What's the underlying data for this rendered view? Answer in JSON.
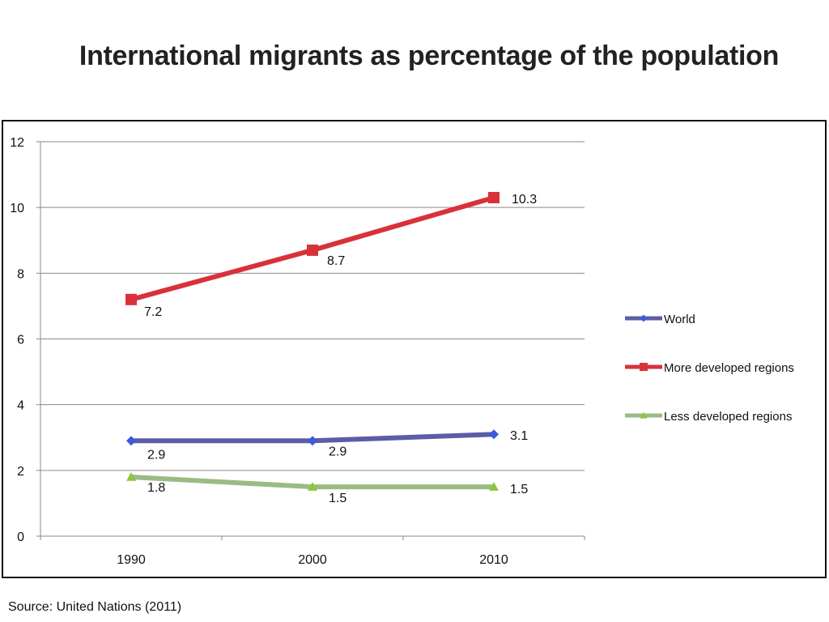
{
  "title": "International migrants as percentage of the population",
  "source": "Source: United Nations (2011)",
  "chart_data": {
    "type": "line",
    "x": [
      "1990",
      "2000",
      "2010"
    ],
    "ylim": [
      0,
      12
    ],
    "yticks": [
      0,
      2,
      4,
      6,
      8,
      10,
      12
    ],
    "grid": true,
    "legend_position": "right",
    "series": [
      {
        "name": "World",
        "values": [
          2.9,
          2.9,
          3.1
        ],
        "labels": [
          "2.9",
          "2.9",
          "3.1"
        ],
        "color": "#5b5ea6",
        "markerColor": "#3b5bdb",
        "marker": "diamond"
      },
      {
        "name": "More developed regions",
        "values": [
          7.2,
          8.7,
          10.3
        ],
        "labels": [
          "7.2",
          "8.7",
          "10.3"
        ],
        "color": "#d9313a",
        "markerColor": "#d9313a",
        "marker": "square"
      },
      {
        "name": "Less developed regions",
        "values": [
          1.8,
          1.5,
          1.5
        ],
        "labels": [
          "1.8",
          "1.5",
          "1.5"
        ],
        "color": "#9bbb84",
        "markerColor": "#8cc63f",
        "marker": "triangle"
      }
    ]
  }
}
